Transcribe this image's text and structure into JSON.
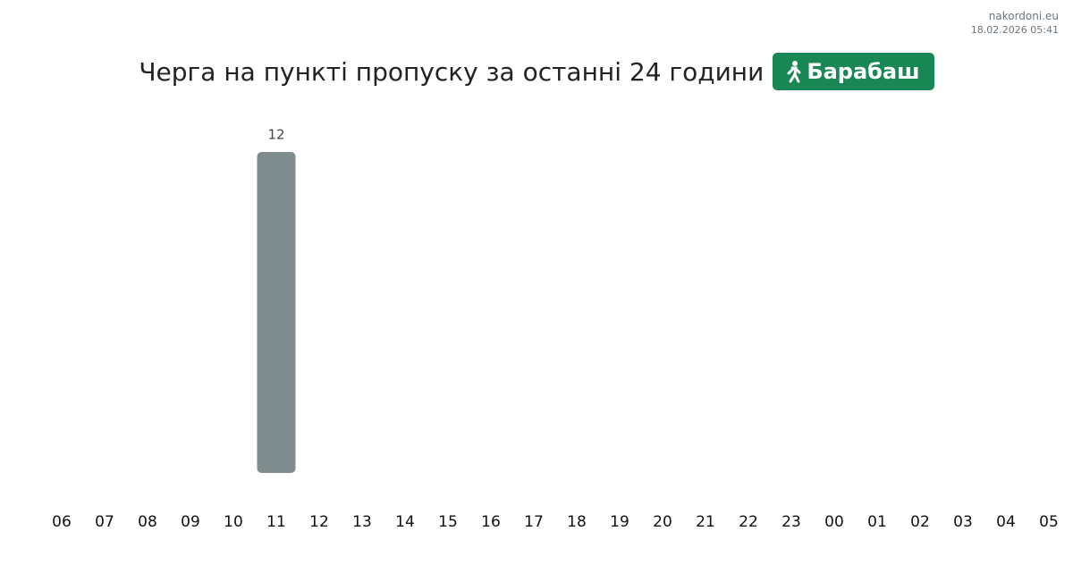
{
  "chart_data": {
    "type": "bar",
    "title": "Черга на пункті пропуску за останні 24 години",
    "badge": "Барабаш",
    "source": "nakordoni.eu",
    "timestamp": "18.02.2026 05:41",
    "categories": [
      "06",
      "07",
      "08",
      "09",
      "10",
      "11",
      "12",
      "13",
      "14",
      "15",
      "16",
      "17",
      "18",
      "19",
      "20",
      "21",
      "22",
      "23",
      "00",
      "01",
      "02",
      "03",
      "04",
      "05"
    ],
    "values": [
      null,
      null,
      null,
      null,
      null,
      12,
      null,
      null,
      null,
      null,
      null,
      null,
      null,
      null,
      null,
      null,
      null,
      null,
      null,
      null,
      null,
      null,
      null,
      null
    ],
    "color": "#7f8c8d"
  }
}
